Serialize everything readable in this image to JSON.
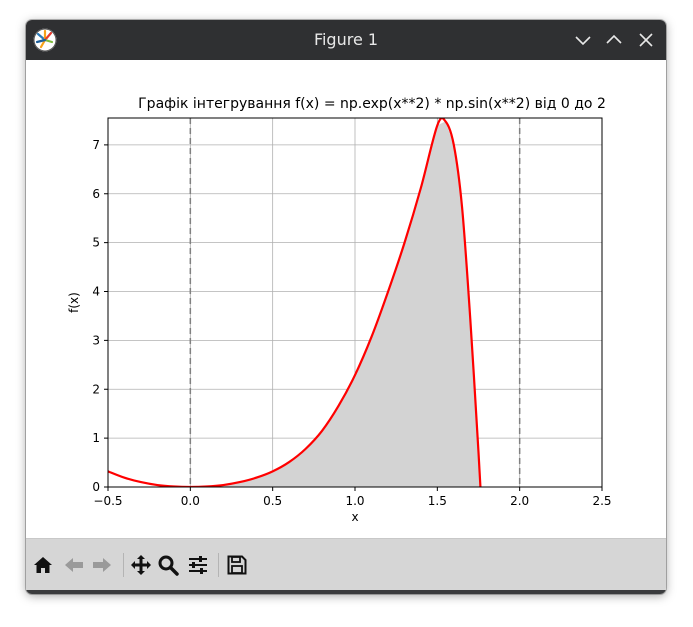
{
  "window": {
    "title": "Figure 1",
    "icon": "matplotlib-logo-icon",
    "controls": [
      {
        "name": "minimize-button",
        "icon": "chevron-down-icon"
      },
      {
        "name": "maximize-button",
        "icon": "chevron-up-icon"
      },
      {
        "name": "close-button",
        "icon": "close-icon"
      }
    ]
  },
  "toolbar": {
    "tools": [
      {
        "name": "home-button",
        "icon": "home-icon"
      },
      {
        "name": "back-button",
        "icon": "arrow-left-icon"
      },
      {
        "name": "forward-button",
        "icon": "arrow-right-icon"
      },
      {
        "name": "pan-button",
        "icon": "move-icon"
      },
      {
        "name": "zoom-button",
        "icon": "magnifier-icon"
      },
      {
        "name": "configure-subplots-button",
        "icon": "sliders-icon"
      },
      {
        "name": "save-button",
        "icon": "floppy-disk-icon"
      }
    ]
  },
  "colors": {
    "titlebar": "#2f3032",
    "toolbar": "#d6d6d6",
    "curve": "#ff0000",
    "fill": "#d3d3d3",
    "vlines": "#808080",
    "grid": "#b0b0b0"
  },
  "chart_data": {
    "type": "area",
    "title": "Графік інтегрування f(x) = np.exp(x**2) * np.sin(x**2) від 0 до 2",
    "xlabel": "x",
    "ylabel": "f(x)",
    "xlim": [
      -0.5,
      2.5
    ],
    "ylim": [
      0,
      7.55
    ],
    "xticks": [
      -0.5,
      0.0,
      0.5,
      1.0,
      1.5,
      2.0,
      2.5
    ],
    "xtick_labels": [
      "−0.5",
      "0.0",
      "0.5",
      "1.0",
      "1.5",
      "2.0",
      "2.5"
    ],
    "yticks": [
      0,
      1,
      2,
      3,
      4,
      5,
      6,
      7
    ],
    "ytick_labels": [
      "0",
      "1",
      "2",
      "3",
      "4",
      "5",
      "6",
      "7"
    ],
    "grid": true,
    "series": [
      {
        "x": [
          -0.5,
          -0.4,
          -0.3,
          -0.2,
          -0.1,
          0.0,
          0.1,
          0.2,
          0.3,
          0.4,
          0.5,
          0.6,
          0.7,
          0.8,
          0.9,
          1.0,
          1.1,
          1.2,
          1.3,
          1.4,
          1.5,
          1.55,
          1.6,
          1.65,
          1.7,
          1.75,
          1.77
        ],
        "y": [
          0.32,
          0.19,
          0.1,
          0.04,
          0.01,
          0.0,
          0.01,
          0.04,
          0.1,
          0.19,
          0.32,
          0.51,
          0.78,
          1.15,
          1.66,
          2.29,
          3.07,
          3.99,
          4.99,
          6.12,
          7.4,
          7.48,
          7.0,
          5.73,
          3.44,
          0.71,
          -0.5
        ]
      }
    ],
    "fill_between": {
      "from": 0,
      "to": 2
    },
    "vlines": [
      0,
      2
    ]
  }
}
